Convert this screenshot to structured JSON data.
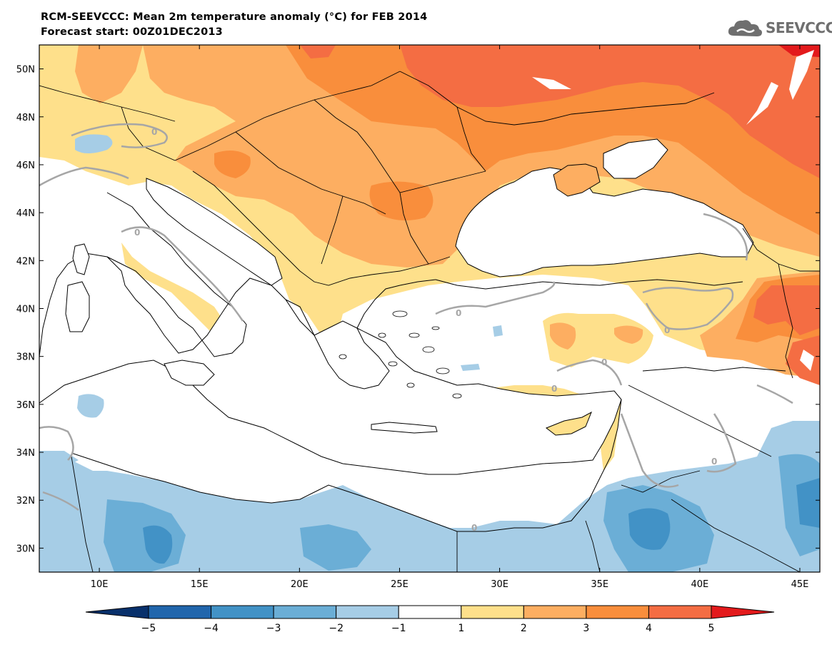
{
  "header": {
    "title": "RCM-SEEVCCC: Mean 2m temperature anomaly (°C) for FEB 2014",
    "subtitle": "Forecast start: 00Z01DEC2013"
  },
  "logo": {
    "text": "SEEVCCC",
    "icon": "cloud-icon"
  },
  "map": {
    "lon_range": [
      7,
      46
    ],
    "lat_range": [
      29,
      51
    ],
    "lat_ticks": [
      {
        "value": 30,
        "label": "30N"
      },
      {
        "value": 32,
        "label": "32N"
      },
      {
        "value": 34,
        "label": "34N"
      },
      {
        "value": 36,
        "label": "36N"
      },
      {
        "value": 38,
        "label": "38N"
      },
      {
        "value": 40,
        "label": "40N"
      },
      {
        "value": 42,
        "label": "42N"
      },
      {
        "value": 44,
        "label": "44N"
      },
      {
        "value": 46,
        "label": "46N"
      },
      {
        "value": 48,
        "label": "48N"
      },
      {
        "value": 50,
        "label": "50N"
      }
    ],
    "lon_ticks": [
      {
        "value": 10,
        "label": "10E"
      },
      {
        "value": 15,
        "label": "15E"
      },
      {
        "value": 20,
        "label": "20E"
      },
      {
        "value": 25,
        "label": "25E"
      },
      {
        "value": 30,
        "label": "30E"
      },
      {
        "value": 35,
        "label": "35E"
      },
      {
        "value": 40,
        "label": "40E"
      },
      {
        "value": 45,
        "label": "45E"
      }
    ],
    "contour_label": "0"
  },
  "colorbar": {
    "levels": [
      "−5",
      "−4",
      "−3",
      "−2",
      "−1",
      "1",
      "2",
      "3",
      "4",
      "5"
    ],
    "colors": [
      "#08306b",
      "#2166ac",
      "#4292c6",
      "#6baed6",
      "#a6cde6",
      "#ffffff",
      "#fee08b",
      "#fdae61",
      "#f98e3c",
      "#f46d43",
      "#e31a1c"
    ]
  }
}
